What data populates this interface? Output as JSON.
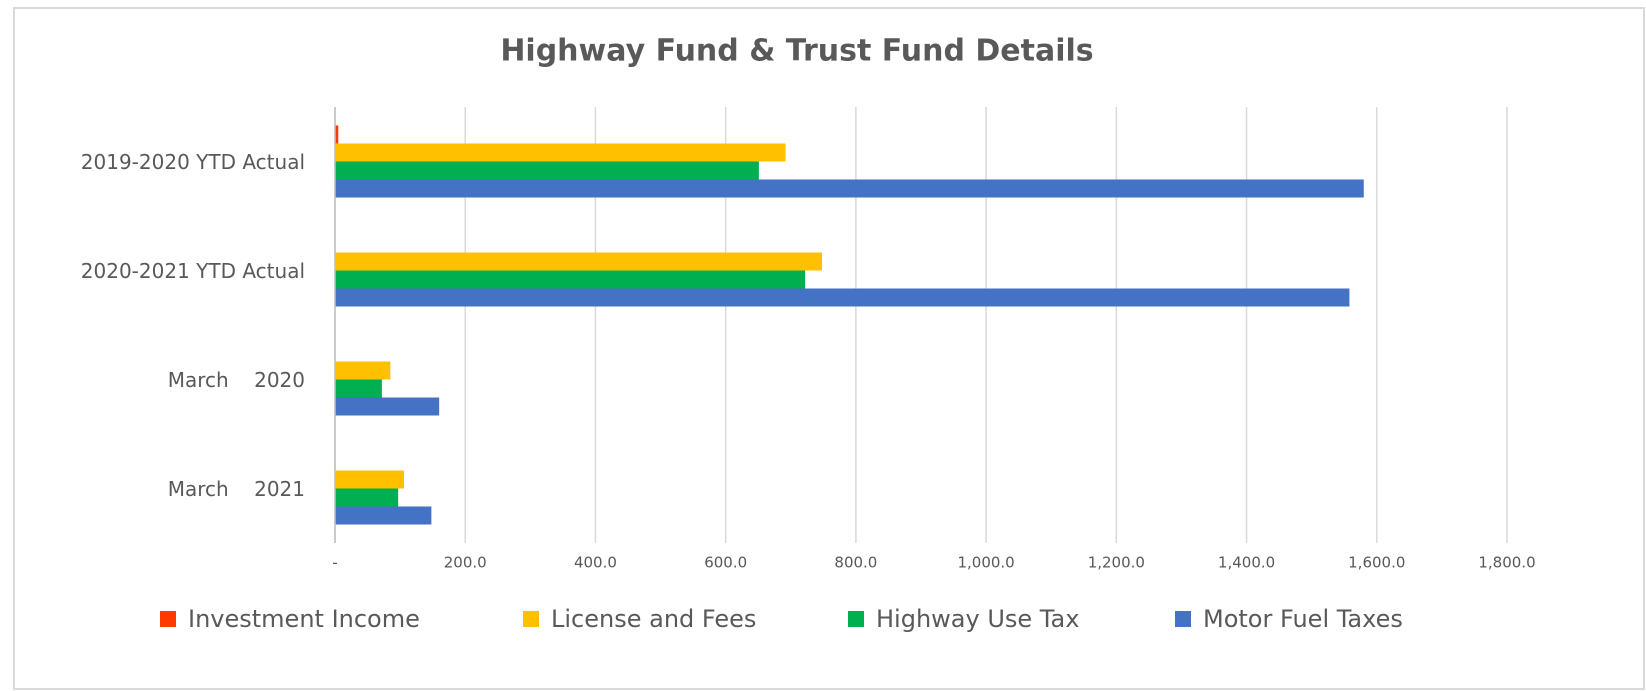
{
  "chart_data": {
    "type": "hbar",
    "title": "Highway Fund & Trust Fund Details",
    "categories": [
      "2019-2020 YTD Actual",
      "2020-2021 YTD Actual",
      "March    2020",
      "March    2021"
    ],
    "series": [
      {
        "name": "Investment Income",
        "color": "#ff3a00",
        "values": [
          5,
          0,
          0,
          0
        ]
      },
      {
        "name": "License and Fees",
        "color": "#ffc000",
        "values": [
          692,
          748,
          85,
          106
        ]
      },
      {
        "name": "Highway Use Tax",
        "color": "#00b050",
        "values": [
          651,
          722,
          72,
          97
        ]
      },
      {
        "name": "Motor Fuel Taxes",
        "color": "#4472c4",
        "values": [
          1580,
          1558,
          160,
          148
        ]
      }
    ],
    "xlim": [
      0,
      1800
    ],
    "xticks": [
      {
        "value": 0,
        "label": "-"
      },
      {
        "value": 200,
        "label": "200.0"
      },
      {
        "value": 400,
        "label": "400.0"
      },
      {
        "value": 600,
        "label": "600.0"
      },
      {
        "value": 800,
        "label": "800.0"
      },
      {
        "value": 1000,
        "label": "1,000.0"
      },
      {
        "value": 1200,
        "label": "1,200.0"
      },
      {
        "value": 1400,
        "label": "1,400.0"
      },
      {
        "value": 1600,
        "label": "1,600.0"
      },
      {
        "value": 1800,
        "label": "1,800.0"
      }
    ],
    "grid": true,
    "legend": "bottom"
  }
}
